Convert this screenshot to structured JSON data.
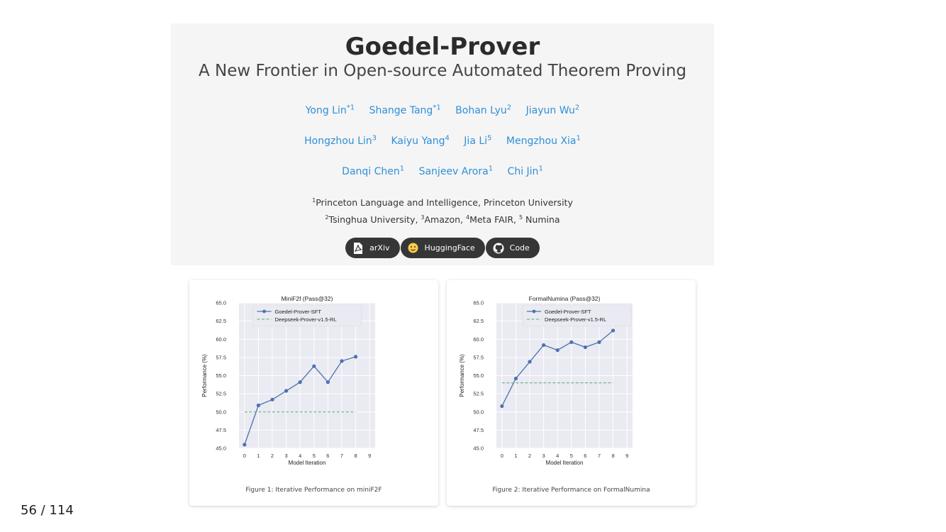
{
  "header": {
    "title": "Goedel-Prover",
    "subtitle": "A New Frontier in Open-source Automated Theorem Proving",
    "authors_row1": [
      {
        "name": "Yong Lin",
        "sup": "*1"
      },
      {
        "name": "Shange Tang",
        "sup": "*1"
      },
      {
        "name": "Bohan Lyu",
        "sup": "2"
      },
      {
        "name": "Jiayun Wu",
        "sup": "2"
      }
    ],
    "authors_row2": [
      {
        "name": "Hongzhou Lin",
        "sup": "3"
      },
      {
        "name": "Kaiyu Yang",
        "sup": "4"
      },
      {
        "name": "Jia Li",
        "sup": "5"
      },
      {
        "name": "Mengzhou Xia",
        "sup": "1"
      }
    ],
    "authors_row3": [
      {
        "name": "Danqi Chen",
        "sup": "1"
      },
      {
        "name": "Sanjeev Arora",
        "sup": "1"
      },
      {
        "name": "Chi Jin",
        "sup": "1"
      }
    ],
    "affiliations": {
      "line1_sup": "1",
      "line1_text": "Princeton Language and Intelligence, Princeton University",
      "line2": [
        {
          "sup": "2",
          "text": "Tsinghua University, "
        },
        {
          "sup": "3",
          "text": "Amazon, "
        },
        {
          "sup": "4",
          "text": "Meta FAIR, "
        },
        {
          "sup": "5",
          "text": " Numina"
        }
      ]
    },
    "buttons": [
      {
        "label": "arXiv",
        "icon": "pdf-icon"
      },
      {
        "label": "HuggingFace",
        "icon": "huggingface-icon"
      },
      {
        "label": "Code",
        "icon": "github-icon"
      }
    ]
  },
  "figures": [
    {
      "caption": "Figure 1: Iterative Performance on miniF2F"
    },
    {
      "caption": "Figure 2: Iterative Performance on FormalNumina"
    }
  ],
  "page_indicator": "56 / 114",
  "chart_data": [
    {
      "type": "line",
      "title": "MiniF2f (Pass@32)",
      "xlabel": "Model Iteration",
      "ylabel": "Performance (%)",
      "xlim": [
        -0.4,
        9.4
      ],
      "ylim": [
        45.0,
        65.0
      ],
      "xticks": [
        0,
        1,
        2,
        3,
        4,
        5,
        6,
        7,
        8,
        9
      ],
      "yticks": [
        45.0,
        47.5,
        50.0,
        52.5,
        55.0,
        57.5,
        60.0,
        62.5,
        65.0
      ],
      "yticklabels": [
        "45.0",
        "47.5",
        "50.0",
        "52.5",
        "55.0",
        "57.5",
        "60.0",
        "62.5",
        "65.0"
      ],
      "grid": true,
      "legend": "top-center",
      "series": [
        {
          "name": "Goedel-Prover-SFT",
          "style": "solid-marker",
          "color": "#4c72b0",
          "x": [
            0,
            1,
            2,
            3,
            4,
            5,
            6,
            7,
            8
          ],
          "y": [
            45.5,
            50.9,
            51.7,
            52.9,
            54.1,
            56.3,
            54.1,
            57.0,
            57.6
          ]
        },
        {
          "name": "Deepseek-Prover-v1.5-RL",
          "style": "dashed",
          "color": "#55a868",
          "x": [
            0,
            8
          ],
          "y": [
            50.0,
            50.0
          ]
        }
      ]
    },
    {
      "type": "line",
      "title": "FormalNumina (Pass@32)",
      "xlabel": "Model Iteration",
      "ylabel": "Performance (%)",
      "xlim": [
        -0.4,
        9.4
      ],
      "ylim": [
        45.0,
        65.0
      ],
      "xticks": [
        0,
        1,
        2,
        3,
        4,
        5,
        6,
        7,
        8,
        9
      ],
      "yticks": [
        45.0,
        47.5,
        50.0,
        52.5,
        55.0,
        57.5,
        60.0,
        62.5,
        65.0
      ],
      "yticklabels": [
        "45.0",
        "47.5",
        "50.0",
        "52.5",
        "55.0",
        "57.5",
        "60.0",
        "62.5",
        "65.0"
      ],
      "grid": true,
      "legend": "top-right",
      "series": [
        {
          "name": "Goedel-Prover-SFT",
          "style": "solid-marker",
          "color": "#4c72b0",
          "x": [
            0,
            1,
            2,
            3,
            4,
            5,
            6,
            7,
            8
          ],
          "y": [
            50.8,
            54.6,
            56.9,
            59.2,
            58.5,
            59.6,
            58.9,
            59.6,
            61.2
          ]
        },
        {
          "name": "Deepseek-Prover-v1.5-RL",
          "style": "dashed",
          "color": "#55a868",
          "x": [
            0,
            8
          ],
          "y": [
            54.0,
            54.0
          ]
        }
      ]
    }
  ]
}
